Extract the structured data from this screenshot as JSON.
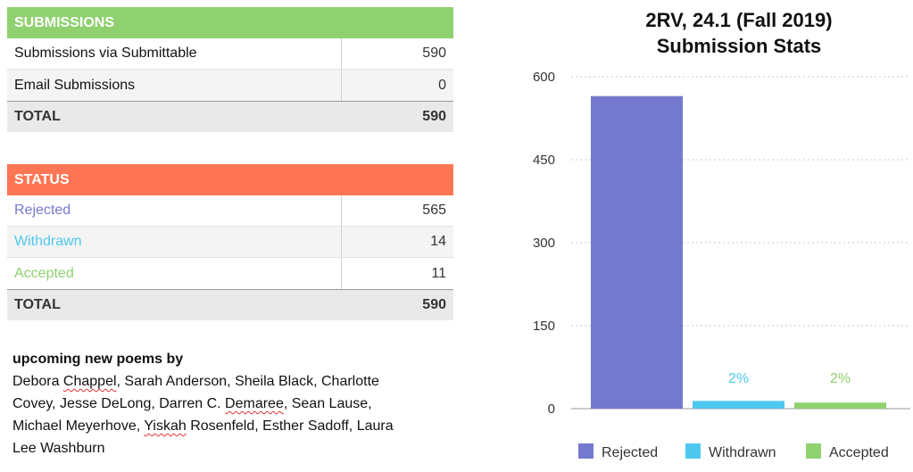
{
  "submissions": {
    "header": "SUBMISSIONS",
    "rows": [
      {
        "label": "Submissions via Submittable",
        "value": "590"
      },
      {
        "label": "Email Submissions",
        "value": "0"
      }
    ],
    "total_label": "TOTAL",
    "total_value": "590"
  },
  "status": {
    "header": "STATUS",
    "rows": [
      {
        "label": "Rejected",
        "value": "565",
        "color": "#7479cf"
      },
      {
        "label": "Withdrawn",
        "value": "14",
        "color": "#4fc8f0"
      },
      {
        "label": "Accepted",
        "value": "11",
        "color": "#8fd16f"
      }
    ],
    "total_label": "TOTAL",
    "total_value": "590"
  },
  "poems": {
    "heading": "upcoming new poems by",
    "line1_a": "Debora ",
    "line1_b": "Chappel",
    "line1_c": ", Sarah Anderson, Sheila Black, Charlotte",
    "line2_a": "Covey, Jesse DeLong, Darren C. ",
    "line2_b": "Demaree",
    "line2_c": ", Sean Lause,",
    "line3_a": "Michael Meyerhove, ",
    "line3_b": "Yiskah",
    "line3_c": " Rosenfeld, Esther Sadoff, Laura",
    "line4": "Lee Washburn"
  },
  "chart_data": {
    "type": "bar",
    "title_line1": "2RV, 24.1 (Fall 2019)",
    "title_line2": "Submission Stats",
    "categories": [
      "Rejected",
      "Withdrawn",
      "Accepted"
    ],
    "values": [
      565,
      14,
      11
    ],
    "colors": [
      "#7479cf",
      "#4fc8f0",
      "#8fd16f"
    ],
    "data_labels": [
      "",
      "2%",
      "2%"
    ],
    "yticks": [
      0,
      150,
      300,
      450,
      600
    ],
    "ylim": [
      0,
      600
    ],
    "grid": true,
    "legend_position": "bottom"
  }
}
